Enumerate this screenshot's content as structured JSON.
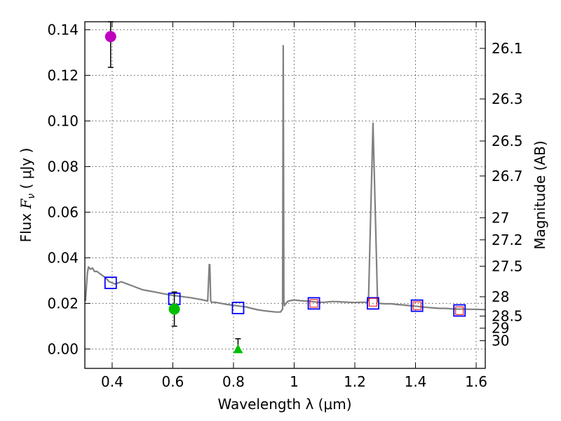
{
  "chart_data": {
    "type": "scatter",
    "xlabel": "Wavelength  λ (μm)",
    "ylabel": "Flux  F_ν  ( μJy )",
    "ylabel_parts": {
      "prefix": "Flux  ",
      "symbol": "F",
      "subscript": "ν",
      "suffix": "  ( μJy )"
    },
    "y2label": "Magnitude (AB)",
    "xlim": [
      0.31,
      1.63
    ],
    "ylim": [
      -0.0085,
      0.1435
    ],
    "grid": true,
    "x_ticks": [
      {
        "value": 0.4,
        "label": "0.4"
      },
      {
        "value": 0.6,
        "label": "0.6"
      },
      {
        "value": 0.8,
        "label": "0.8"
      },
      {
        "value": 1.0,
        "label": "1"
      },
      {
        "value": 1.2,
        "label": "1.2"
      },
      {
        "value": 1.4,
        "label": "1.4"
      },
      {
        "value": 1.6,
        "label": "1.6"
      }
    ],
    "y_ticks": [
      {
        "value": 0.0,
        "label": "0.00"
      },
      {
        "value": 0.02,
        "label": "0.02"
      },
      {
        "value": 0.04,
        "label": "0.04"
      },
      {
        "value": 0.06,
        "label": "0.06"
      },
      {
        "value": 0.08,
        "label": "0.08"
      },
      {
        "value": 0.1,
        "label": "0.10"
      },
      {
        "value": 0.12,
        "label": "0.12"
      },
      {
        "value": 0.14,
        "label": "0.14"
      }
    ],
    "y2_ticks": [
      {
        "value": 26.1,
        "label": "26.1"
      },
      {
        "value": 26.3,
        "label": "26.3"
      },
      {
        "value": 26.5,
        "label": "26.5"
      },
      {
        "value": 26.7,
        "label": "26.7"
      },
      {
        "value": 27.0,
        "label": "27"
      },
      {
        "value": 27.2,
        "label": "27.2"
      },
      {
        "value": 27.5,
        "label": "27.5"
      },
      {
        "value": 28.0,
        "label": "28"
      },
      {
        "value": 28.5,
        "label": "28.5"
      },
      {
        "value": 29.0,
        "label": "29"
      },
      {
        "value": 30.0,
        "label": "30"
      }
    ],
    "series": [
      {
        "name": "model spectrum",
        "kind": "line",
        "color": "#808080",
        "x": [
          0.312,
          0.318,
          0.322,
          0.328,
          0.335,
          0.342,
          0.35,
          0.36,
          0.37,
          0.38,
          0.39,
          0.4,
          0.41,
          0.42,
          0.43,
          0.44,
          0.45,
          0.46,
          0.47,
          0.48,
          0.49,
          0.5,
          0.52,
          0.54,
          0.56,
          0.58,
          0.6,
          0.62,
          0.64,
          0.66,
          0.68,
          0.7,
          0.715,
          0.72,
          0.722,
          0.725,
          0.728,
          0.74,
          0.76,
          0.78,
          0.8,
          0.82,
          0.84,
          0.86,
          0.88,
          0.9,
          0.92,
          0.94,
          0.955,
          0.962,
          0.964,
          0.966,
          0.968,
          0.97,
          0.98,
          1.0,
          1.02,
          1.04,
          1.06,
          1.08,
          1.1,
          1.12,
          1.14,
          1.16,
          1.18,
          1.2,
          1.22,
          1.24,
          1.245,
          1.26,
          1.275,
          1.28,
          1.3,
          1.32,
          1.34,
          1.36,
          1.38,
          1.4,
          1.42,
          1.44,
          1.46,
          1.48,
          1.5,
          1.52,
          1.54,
          1.56,
          1.58,
          1.6,
          1.62,
          1.63
        ],
        "y": [
          0.021,
          0.033,
          0.036,
          0.035,
          0.0355,
          0.034,
          0.034,
          0.033,
          0.032,
          0.031,
          0.0295,
          0.029,
          0.0285,
          0.029,
          0.0295,
          0.029,
          0.0285,
          0.028,
          0.0275,
          0.027,
          0.0265,
          0.026,
          0.0255,
          0.025,
          0.0245,
          0.024,
          0.0235,
          0.0232,
          0.0228,
          0.0225,
          0.022,
          0.0215,
          0.021,
          0.037,
          0.037,
          0.021,
          0.0205,
          0.0205,
          0.02,
          0.0195,
          0.0192,
          0.0188,
          0.0185,
          0.0178,
          0.0172,
          0.0168,
          0.0165,
          0.0162,
          0.0162,
          0.0175,
          0.133,
          0.021,
          0.019,
          0.0195,
          0.021,
          0.0215,
          0.0212,
          0.021,
          0.0208,
          0.0205,
          0.0205,
          0.0208,
          0.0208,
          0.0206,
          0.0205,
          0.0204,
          0.0205,
          0.0205,
          0.0215,
          0.099,
          0.021,
          0.02,
          0.0198,
          0.0198,
          0.0195,
          0.0193,
          0.019,
          0.0188,
          0.0185,
          0.0182,
          0.018,
          0.0178,
          0.0178,
          0.0176,
          0.0175,
          0.0175,
          0.0174,
          0.0174,
          0.0173,
          0.0173
        ]
      },
      {
        "name": "model photometry",
        "kind": "marker",
        "marker": "open-square",
        "color": "#0000ff",
        "x": [
          0.395,
          0.605,
          0.815,
          1.065,
          1.26,
          1.405,
          1.545
        ],
        "y": [
          0.029,
          0.022,
          0.018,
          0.02,
          0.02,
          0.019,
          0.0169
        ]
      },
      {
        "name": "measured (red)",
        "kind": "marker",
        "marker": "open-square-small",
        "color": "#ff0000",
        "x": [
          1.065,
          1.26,
          1.405,
          1.545
        ],
        "y": [
          0.02,
          0.0205,
          0.019,
          0.0168
        ]
      },
      {
        "name": "detection (magenta)",
        "kind": "marker",
        "marker": "circle",
        "color": "#bf00bf",
        "x": [
          0.395
        ],
        "y": [
          0.137
        ],
        "yerr_low": [
          0.0135
        ],
        "yerr_high": [
          0.0065
        ]
      },
      {
        "name": "detection (green)",
        "kind": "marker",
        "marker": "circle",
        "color": "#00bf00",
        "x": [
          0.605
        ],
        "y": [
          0.0175
        ],
        "yerr_low": [
          0.0075
        ],
        "yerr_high": [
          0.0075
        ]
      },
      {
        "name": "upper limit (green)",
        "kind": "marker",
        "marker": "triangle",
        "color": "#00bf00",
        "x": [
          0.815
        ],
        "y": [
          0.0
        ],
        "yerr_low": [
          0.0
        ],
        "yerr_high": [
          0.0045
        ]
      }
    ]
  }
}
